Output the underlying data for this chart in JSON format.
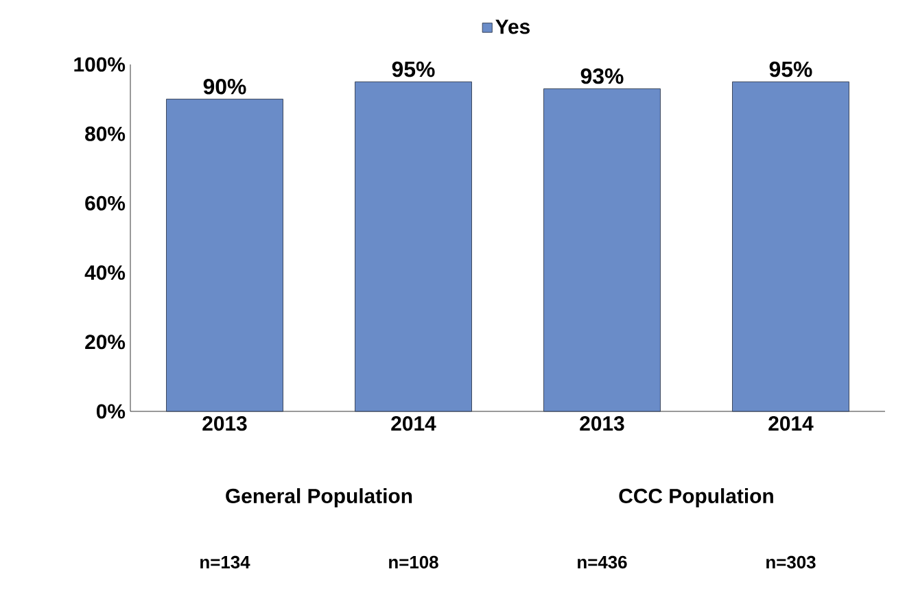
{
  "chart_data": {
    "type": "bar",
    "categories": [
      "2013",
      "2014",
      "2013",
      "2014"
    ],
    "series": [
      {
        "name": "Yes",
        "color": "#6a8cc8",
        "values": [
          90,
          95,
          93,
          95
        ]
      }
    ],
    "ylim": [
      0,
      100
    ],
    "yticks": [
      {
        "value": 0,
        "label": "0%"
      },
      {
        "value": 20,
        "label": "20%"
      },
      {
        "value": 40,
        "label": "40%"
      },
      {
        "value": 60,
        "label": "60%"
      },
      {
        "value": 80,
        "label": "80%"
      },
      {
        "value": 100,
        "label": "100%"
      }
    ],
    "value_labels": [
      "90%",
      "95%",
      "93%",
      "95%"
    ],
    "legend": "top",
    "grid": false,
    "annotations": [
      "General Population",
      "CCC Population",
      "n=134",
      "n=108",
      "n=436",
      "n=303"
    ]
  }
}
